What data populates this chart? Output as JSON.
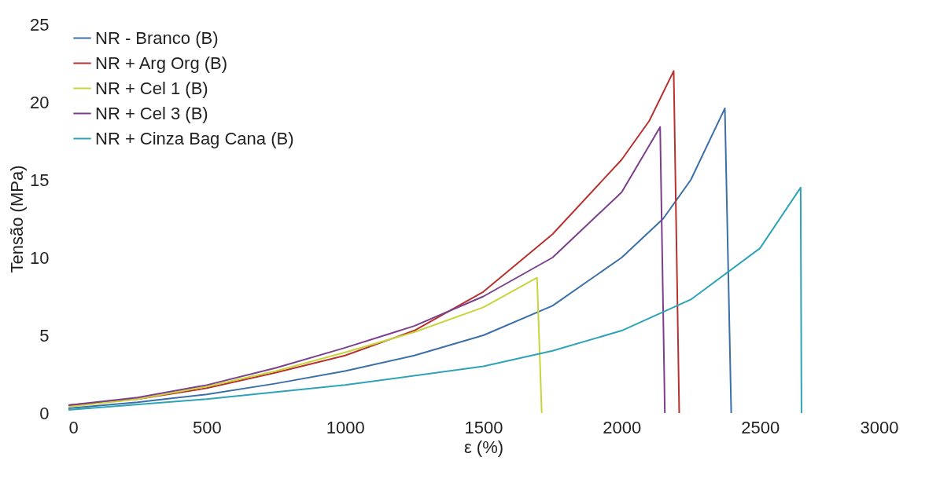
{
  "chart_data": {
    "type": "line",
    "xlabel": "ε (%)",
    "ylabel": "Tensão (MPa)",
    "xlim": [
      0,
      3000
    ],
    "ylim": [
      0,
      25
    ],
    "xticks": [
      0,
      500,
      1000,
      1500,
      2000,
      2500,
      3000
    ],
    "yticks": [
      0,
      5,
      10,
      15,
      20,
      25
    ],
    "legend": "top left",
    "marker": "none",
    "line_style": "solid",
    "series": [
      {
        "name": "NR - Branco (B)",
        "color": "#3a6fa8",
        "x": [
          0,
          250,
          500,
          750,
          1000,
          1250,
          1500,
          1750,
          2000,
          2150,
          2250,
          2373,
          2396
        ],
        "values": [
          0.3,
          0.7,
          1.2,
          1.9,
          2.7,
          3.7,
          5.0,
          6.9,
          10.0,
          12.5,
          15.0,
          19.6,
          0
        ]
      },
      {
        "name": "NR + Arg Org (B)",
        "color": "#b8312f",
        "x": [
          0,
          250,
          500,
          750,
          1000,
          1250,
          1500,
          1750,
          2000,
          2100,
          2188,
          2208
        ],
        "values": [
          0.5,
          0.9,
          1.6,
          2.6,
          3.7,
          5.3,
          7.8,
          11.5,
          16.3,
          18.8,
          22.0,
          0
        ]
      },
      {
        "name": "NR + Cel 1 (B)",
        "color": "#c8d43a",
        "x": [
          0,
          250,
          500,
          750,
          1000,
          1250,
          1500,
          1694,
          1711
        ],
        "values": [
          0.4,
          0.9,
          1.7,
          2.7,
          3.9,
          5.2,
          6.8,
          8.7,
          0
        ]
      },
      {
        "name": "NR + Cel 3 (B)",
        "color": "#7b3f8c",
        "x": [
          0,
          250,
          500,
          750,
          1000,
          1250,
          1500,
          1750,
          2000,
          2139,
          2156
        ],
        "values": [
          0.5,
          1.0,
          1.8,
          2.9,
          4.2,
          5.6,
          7.5,
          10.0,
          14.2,
          18.4,
          0
        ]
      },
      {
        "name": "NR + Cinza Bag Cana (B)",
        "color": "#2ea3b8",
        "x": [
          0,
          500,
          1000,
          1500,
          1750,
          2000,
          2250,
          2500,
          2647,
          2650
        ],
        "values": [
          0.2,
          0.9,
          1.8,
          3.0,
          4.0,
          5.3,
          7.3,
          10.6,
          14.5,
          0
        ]
      }
    ]
  }
}
